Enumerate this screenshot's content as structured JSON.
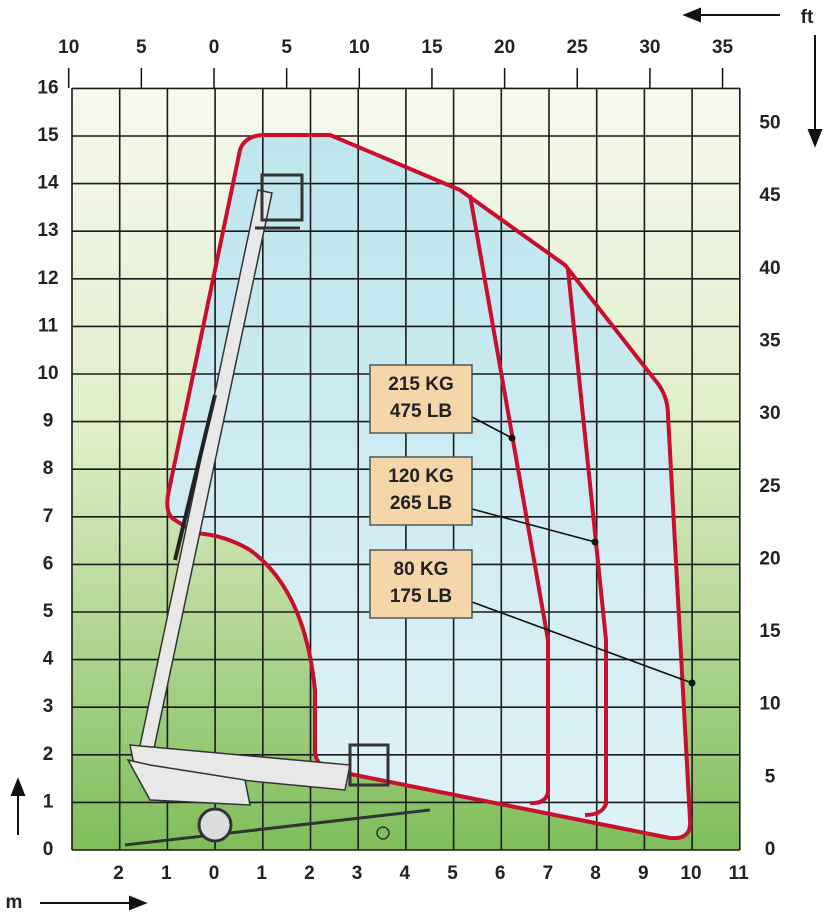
{
  "units": {
    "top": "ft",
    "bottom": "m"
  },
  "axes": {
    "top": [
      "10",
      "5",
      "0",
      "5",
      "10",
      "15",
      "20",
      "25",
      "30",
      "35"
    ],
    "right": [
      "0",
      "5",
      "10",
      "15",
      "20",
      "25",
      "30",
      "35",
      "40",
      "45",
      "50"
    ],
    "left": [
      "0",
      "1",
      "2",
      "3",
      "4",
      "5",
      "6",
      "7",
      "8",
      "9",
      "10",
      "11",
      "12",
      "13",
      "14",
      "15",
      "16"
    ],
    "bottom": [
      "2",
      "1",
      "0",
      "1",
      "2",
      "3",
      "4",
      "5",
      "6",
      "7",
      "8",
      "9",
      "10",
      "11"
    ]
  },
  "loads": [
    {
      "kg": "215 KG",
      "lb": "475 LB"
    },
    {
      "kg": "120 KG",
      "lb": "265 LB"
    },
    {
      "kg": "80 KG",
      "lb": "175 LB"
    }
  ]
}
